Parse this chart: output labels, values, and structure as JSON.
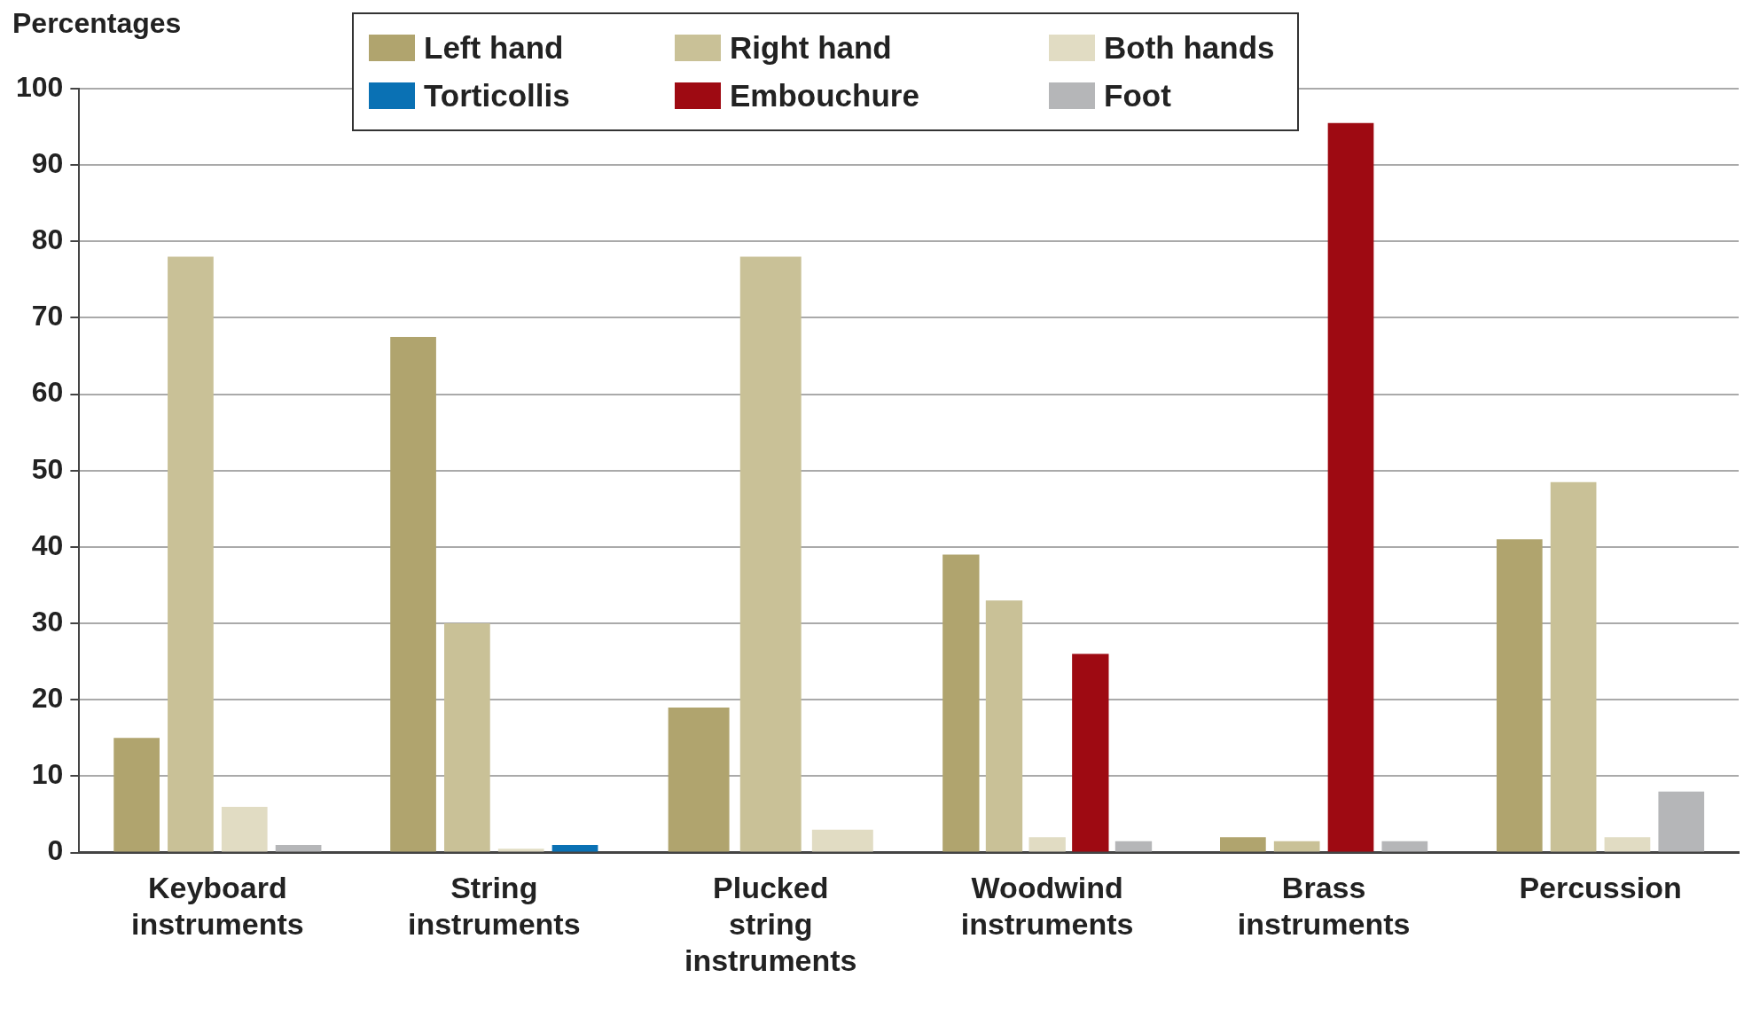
{
  "chart_data": {
    "type": "bar",
    "ylabel": "Percentages",
    "categories": [
      "Keyboard instruments",
      "String instruments",
      "Plucked string instruments",
      "Woodwind instruments",
      "Brass instruments",
      "Percussion"
    ],
    "series": [
      {
        "name": "Left hand",
        "color": "#b0a46e",
        "values": [
          15,
          67.5,
          19,
          39,
          2,
          41
        ]
      },
      {
        "name": "Right hand",
        "color": "#c9c197",
        "values": [
          78,
          30,
          78,
          33,
          1.5,
          48.5
        ]
      },
      {
        "name": "Both hands",
        "color": "#e1dcc3",
        "values": [
          6,
          0.5,
          3,
          2,
          null,
          2
        ]
      },
      {
        "name": "Torticollis",
        "color": "#0a71b4",
        "values": [
          null,
          1,
          null,
          null,
          null,
          null
        ]
      },
      {
        "name": "Embouchure",
        "color": "#9e0a12",
        "values": [
          null,
          null,
          null,
          26,
          95.5,
          null
        ]
      },
      {
        "name": "Foot",
        "color": "#b5b6b8",
        "values": [
          1,
          null,
          null,
          1.5,
          1.5,
          8
        ]
      }
    ],
    "ylim": [
      0,
      100
    ],
    "yticks": [
      0,
      10,
      20,
      30,
      40,
      50,
      60,
      70,
      80,
      90,
      100
    ],
    "grid": "y",
    "legend": "top"
  }
}
